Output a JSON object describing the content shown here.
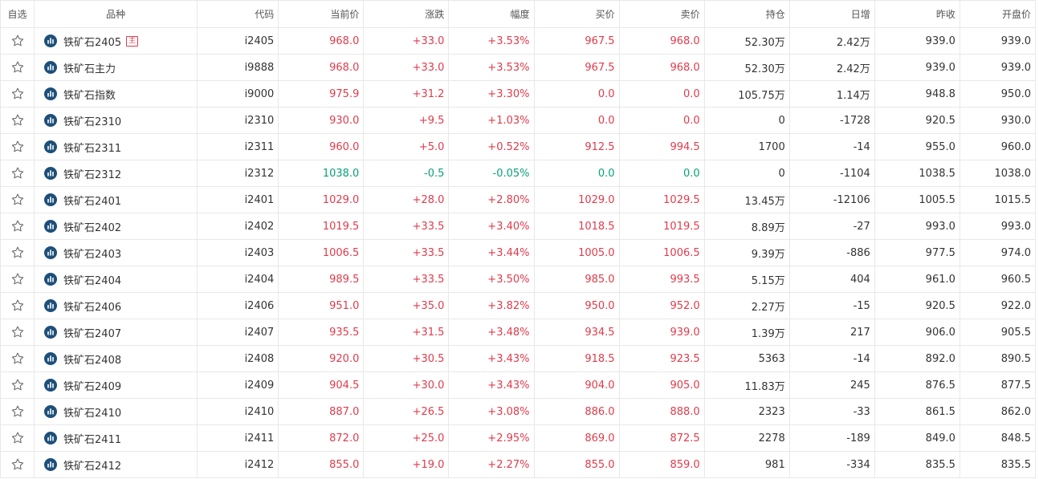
{
  "colors": {
    "up": "#e03b4b",
    "down": "#0aa07a",
    "icon": "#1d4f7a"
  },
  "icons": {
    "favorite": "star-outline-icon",
    "chart": "bar-chart-icon"
  },
  "header": [
    "自选",
    "品种",
    "代码",
    "当前价",
    "涨跌",
    "幅度",
    "买价",
    "卖价",
    "持仓",
    "日增",
    "昨收",
    "开盘价"
  ],
  "rows": [
    {
      "name": "铁矿石2405",
      "badge": "主",
      "code": "i2405",
      "price": "968.0",
      "change": "+33.0",
      "pct": "+3.53%",
      "bid": "967.5",
      "ask": "968.0",
      "oi": "52.30万",
      "daily": "2.42万",
      "prev": "939.0",
      "open": "939.0",
      "dir": "up"
    },
    {
      "name": "铁矿石主力",
      "badge": "",
      "code": "i9888",
      "price": "968.0",
      "change": "+33.0",
      "pct": "+3.53%",
      "bid": "967.5",
      "ask": "968.0",
      "oi": "52.30万",
      "daily": "2.42万",
      "prev": "939.0",
      "open": "939.0",
      "dir": "up"
    },
    {
      "name": "铁矿石指数",
      "badge": "",
      "code": "i9000",
      "price": "975.9",
      "change": "+31.2",
      "pct": "+3.30%",
      "bid": "0.0",
      "ask": "0.0",
      "oi": "105.75万",
      "daily": "1.14万",
      "prev": "948.8",
      "open": "950.0",
      "dir": "up"
    },
    {
      "name": "铁矿石2310",
      "badge": "",
      "code": "i2310",
      "price": "930.0",
      "change": "+9.5",
      "pct": "+1.03%",
      "bid": "0.0",
      "ask": "0.0",
      "oi": "0",
      "daily": "-1728",
      "prev": "920.5",
      "open": "930.0",
      "dir": "up"
    },
    {
      "name": "铁矿石2311",
      "badge": "",
      "code": "i2311",
      "price": "960.0",
      "change": "+5.0",
      "pct": "+0.52%",
      "bid": "912.5",
      "ask": "994.5",
      "oi": "1700",
      "daily": "-14",
      "prev": "955.0",
      "open": "960.0",
      "dir": "up"
    },
    {
      "name": "铁矿石2312",
      "badge": "",
      "code": "i2312",
      "price": "1038.0",
      "change": "-0.5",
      "pct": "-0.05%",
      "bid": "0.0",
      "ask": "0.0",
      "oi": "0",
      "daily": "-1104",
      "prev": "1038.5",
      "open": "1038.0",
      "dir": "down"
    },
    {
      "name": "铁矿石2401",
      "badge": "",
      "code": "i2401",
      "price": "1029.0",
      "change": "+28.0",
      "pct": "+2.80%",
      "bid": "1029.0",
      "ask": "1029.5",
      "oi": "13.45万",
      "daily": "-12106",
      "prev": "1005.5",
      "open": "1015.5",
      "dir": "up"
    },
    {
      "name": "铁矿石2402",
      "badge": "",
      "code": "i2402",
      "price": "1019.5",
      "change": "+33.5",
      "pct": "+3.40%",
      "bid": "1018.5",
      "ask": "1019.5",
      "oi": "8.89万",
      "daily": "-27",
      "prev": "993.0",
      "open": "993.0",
      "dir": "up"
    },
    {
      "name": "铁矿石2403",
      "badge": "",
      "code": "i2403",
      "price": "1006.5",
      "change": "+33.5",
      "pct": "+3.44%",
      "bid": "1005.0",
      "ask": "1006.5",
      "oi": "9.39万",
      "daily": "-886",
      "prev": "977.5",
      "open": "974.0",
      "dir": "up"
    },
    {
      "name": "铁矿石2404",
      "badge": "",
      "code": "i2404",
      "price": "989.5",
      "change": "+33.5",
      "pct": "+3.50%",
      "bid": "985.0",
      "ask": "993.5",
      "oi": "5.15万",
      "daily": "404",
      "prev": "961.0",
      "open": "960.5",
      "dir": "up"
    },
    {
      "name": "铁矿石2406",
      "badge": "",
      "code": "i2406",
      "price": "951.0",
      "change": "+35.0",
      "pct": "+3.82%",
      "bid": "950.0",
      "ask": "952.0",
      "oi": "2.27万",
      "daily": "-15",
      "prev": "920.5",
      "open": "922.0",
      "dir": "up"
    },
    {
      "name": "铁矿石2407",
      "badge": "",
      "code": "i2407",
      "price": "935.5",
      "change": "+31.5",
      "pct": "+3.48%",
      "bid": "934.5",
      "ask": "939.0",
      "oi": "1.39万",
      "daily": "217",
      "prev": "906.0",
      "open": "905.5",
      "dir": "up"
    },
    {
      "name": "铁矿石2408",
      "badge": "",
      "code": "i2408",
      "price": "920.0",
      "change": "+30.5",
      "pct": "+3.43%",
      "bid": "918.5",
      "ask": "923.5",
      "oi": "5363",
      "daily": "-14",
      "prev": "892.0",
      "open": "890.5",
      "dir": "up"
    },
    {
      "name": "铁矿石2409",
      "badge": "",
      "code": "i2409",
      "price": "904.5",
      "change": "+30.0",
      "pct": "+3.43%",
      "bid": "904.0",
      "ask": "905.0",
      "oi": "11.83万",
      "daily": "245",
      "prev": "876.5",
      "open": "877.5",
      "dir": "up"
    },
    {
      "name": "铁矿石2410",
      "badge": "",
      "code": "i2410",
      "price": "887.0",
      "change": "+26.5",
      "pct": "+3.08%",
      "bid": "886.0",
      "ask": "888.0",
      "oi": "2323",
      "daily": "-33",
      "prev": "861.5",
      "open": "862.0",
      "dir": "up"
    },
    {
      "name": "铁矿石2411",
      "badge": "",
      "code": "i2411",
      "price": "872.0",
      "change": "+25.0",
      "pct": "+2.95%",
      "bid": "869.0",
      "ask": "872.5",
      "oi": "2278",
      "daily": "-189",
      "prev": "849.0",
      "open": "848.5",
      "dir": "up"
    },
    {
      "name": "铁矿石2412",
      "badge": "",
      "code": "i2412",
      "price": "855.0",
      "change": "+19.0",
      "pct": "+2.27%",
      "bid": "855.0",
      "ask": "859.0",
      "oi": "981",
      "daily": "-334",
      "prev": "835.5",
      "open": "835.5",
      "dir": "up"
    }
  ]
}
